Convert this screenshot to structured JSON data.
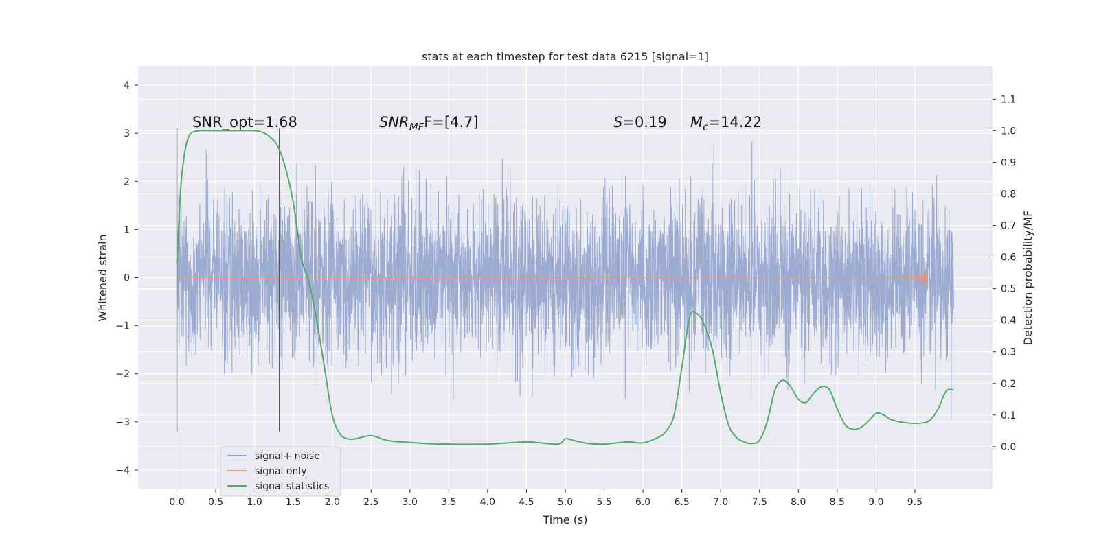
{
  "chart_data": {
    "type": "line",
    "title": "stats at each timestep for test data 6215 [signal=1]",
    "xlabel": "Time (s)",
    "ylabel": "Whitened strain",
    "y2label": "Detection probability/MF",
    "xlim": [
      -0.5,
      10.5
    ],
    "ylim": [
      -4.4,
      4.4
    ],
    "y2lim": [
      -0.135,
      1.205
    ],
    "xticks": [
      "0.0",
      "0.5",
      "1.0",
      "1.5",
      "2.0",
      "2.5",
      "3.0",
      "3.5",
      "4.0",
      "4.5",
      "5.0",
      "5.5",
      "6.0",
      "6.5",
      "7.0",
      "7.5",
      "8.0",
      "8.5",
      "9.0",
      "9.5"
    ],
    "yticks": [
      "−4",
      "−3",
      "−2",
      "−1",
      "0",
      "1",
      "2",
      "3",
      "4"
    ],
    "y2ticks": [
      "0.0",
      "0.1",
      "0.2",
      "0.3",
      "0.4",
      "0.5",
      "0.6",
      "0.7",
      "0.8",
      "0.9",
      "1.0",
      "1.1"
    ],
    "grid": true,
    "legend_position": "lower-left",
    "annotations": {
      "snr_opt": "SNR_opt=1.68",
      "snr_mf_main": "SNR",
      "snr_mf_sub": "MF",
      "snr_mf_rest": "F=[4.7]",
      "s_main": "S",
      "s_rest": "=0.19",
      "mc_main": "M",
      "mc_sub": "c",
      "mc_rest": "=14.22"
    },
    "vertical_lines_x": [
      0.0,
      1.32
    ],
    "series": [
      {
        "name": "signal+ noise",
        "color": "#8da0cb",
        "description_range": [
          -4.0,
          4.0
        ],
        "x_range": [
          0.0,
          10.0
        ]
      },
      {
        "name": "signal only",
        "color": "#e9967a",
        "x_range": [
          0.0,
          9.65
        ],
        "peak_amplitude": 0.3
      },
      {
        "name": "signal statistics",
        "color": "#55a868",
        "x": [
          0.0,
          0.05,
          0.1,
          0.15,
          0.2,
          0.3,
          0.5,
          0.8,
          1.0,
          1.1,
          1.2,
          1.3,
          1.4,
          1.5,
          1.6,
          1.7,
          1.8,
          1.9,
          2.0,
          2.1,
          2.2,
          2.3,
          2.5,
          2.7,
          2.9,
          3.2,
          3.5,
          4.0,
          4.5,
          4.9,
          5.0,
          5.1,
          5.3,
          5.5,
          5.8,
          6.0,
          6.2,
          6.3,
          6.4,
          6.5,
          6.6,
          6.7,
          6.8,
          6.9,
          7.0,
          7.1,
          7.2,
          7.3,
          7.4,
          7.5,
          7.6,
          7.7,
          7.8,
          7.9,
          8.0,
          8.1,
          8.2,
          8.3,
          8.4,
          8.5,
          8.6,
          8.7,
          8.8,
          8.9,
          9.0,
          9.1,
          9.2,
          9.4,
          9.6,
          9.7,
          9.8,
          9.9,
          10.0
        ],
        "values": [
          0.58,
          0.82,
          0.93,
          0.98,
          0.995,
          1.0,
          1.0,
          1.0,
          1.0,
          0.995,
          0.98,
          0.95,
          0.88,
          0.77,
          0.6,
          0.52,
          0.4,
          0.25,
          0.1,
          0.04,
          0.025,
          0.025,
          0.035,
          0.02,
          0.015,
          0.01,
          0.008,
          0.008,
          0.015,
          0.008,
          0.025,
          0.02,
          0.01,
          0.008,
          0.015,
          0.012,
          0.03,
          0.05,
          0.1,
          0.25,
          0.41,
          0.42,
          0.38,
          0.3,
          0.17,
          0.07,
          0.03,
          0.015,
          0.01,
          0.02,
          0.08,
          0.18,
          0.21,
          0.19,
          0.15,
          0.14,
          0.17,
          0.19,
          0.18,
          0.12,
          0.07,
          0.055,
          0.06,
          0.08,
          0.105,
          0.1,
          0.085,
          0.075,
          0.075,
          0.085,
          0.12,
          0.175,
          0.18
        ]
      }
    ]
  }
}
